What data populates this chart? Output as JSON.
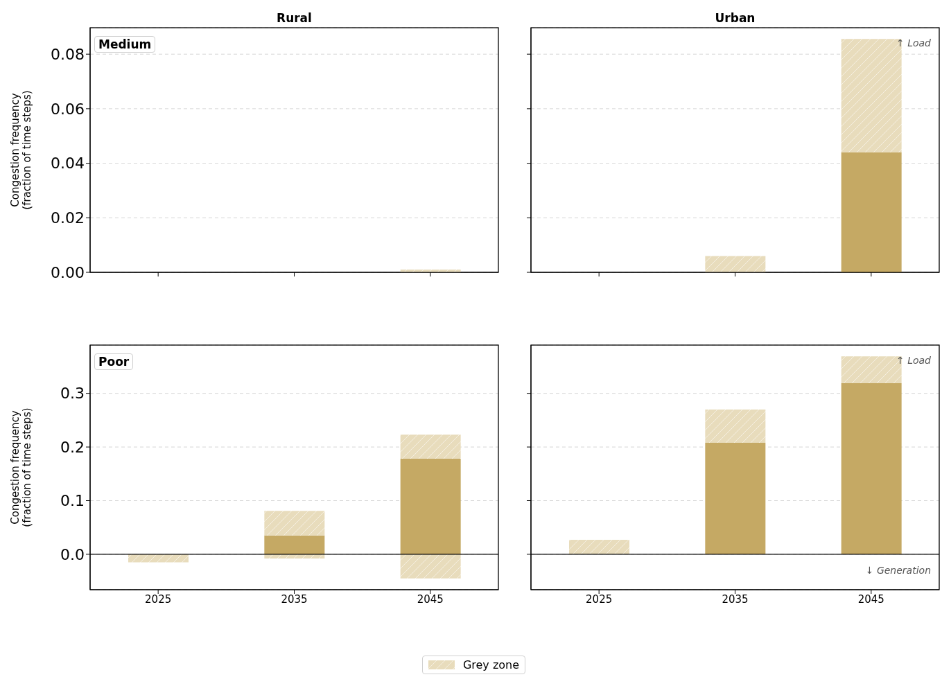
{
  "chart_data": [
    {
      "type": "bar",
      "title": "Rural",
      "ylabel": "Congestion frequency\n(fraction of time steps)",
      "annotations": [
        "Medium"
      ],
      "categories": [
        "2025",
        "2035",
        "2045"
      ],
      "stacked": true,
      "series": [
        {
          "color": "#c5a964",
          "values": [
            0,
            0,
            0
          ]
        },
        {
          "color": "#e8dcbc",
          "values": [
            0,
            0,
            0.001
          ]
        }
      ],
      "ylim": [
        0,
        0.0897
      ],
      "yticks": [
        {
          "value": 0,
          "label": "0.00"
        },
        {
          "value": 0.02,
          "label": "0.02"
        },
        {
          "value": 0.04,
          "label": "0.04"
        },
        {
          "value": 0.06,
          "label": "0.06"
        },
        {
          "value": 0.08,
          "label": "0.08"
        }
      ],
      "grid": "y",
      "tick_labels": "y",
      "legend": false
    },
    {
      "type": "bar",
      "title": "Urban",
      "annotations": [
        "↑ Load"
      ],
      "categories": [
        "2025",
        "2035",
        "2045"
      ],
      "stacked": true,
      "series": [
        {
          "color": "#c5a964",
          "values": [
            0,
            0,
            0.044
          ]
        },
        {
          "color": "#e8dcbc",
          "values": [
            0,
            0.006,
            0.0416
          ]
        }
      ],
      "ylim": [
        0,
        0.0897
      ],
      "yticks": [
        {
          "value": 0,
          "label": null
        },
        {
          "value": 0.02,
          "label": null
        },
        {
          "value": 0.04,
          "label": null
        },
        {
          "value": 0.06,
          "label": null
        },
        {
          "value": 0.08,
          "label": null
        }
      ],
      "grid": "y",
      "tick_labels": false,
      "legend": false
    },
    {
      "type": "bar",
      "ylabel": "Congestion frequency\n(fraction of time steps)",
      "annotations": [
        "Poor"
      ],
      "categories": [
        "2025",
        "2035",
        "2045"
      ],
      "stacked": true,
      "series": [
        {
          "color": "#c5a964",
          "values": [
            0,
            0.035,
            0.178
          ]
        },
        {
          "color": "#e8dcbc",
          "values": [
            0,
            0.046,
            0.045
          ]
        },
        {
          "color": "#e8dcbc",
          "values": [
            -0.015,
            -0.008,
            -0.045
          ]
        }
      ],
      "ylim": [
        -0.066,
        0.39
      ],
      "yticks": [
        {
          "value": 0,
          "label": "0.0"
        },
        0.1,
        0.2,
        0.3
      ],
      "grid": "y",
      "ref_lines": [
        {
          "axis": "y",
          "value": 0,
          "color": "#000000"
        }
      ],
      "legend": false
    },
    {
      "type": "bar",
      "annotations": [
        "↑ Load",
        "↓ Generation"
      ],
      "categories": [
        "2025",
        "2035",
        "2045"
      ],
      "stacked": true,
      "series": [
        {
          "color": "#c5a964",
          "values": [
            0,
            0.208,
            0.319
          ]
        },
        {
          "name": "Grey zone",
          "color": "#e8dcbc",
          "values": [
            0.027,
            0.062,
            0.05
          ]
        }
      ],
      "ylim": [
        -0.066,
        0.39
      ],
      "yticks": [
        {
          "value": 0,
          "label": null
        },
        {
          "value": 0.1,
          "label": null
        },
        {
          "value": 0.2,
          "label": null
        },
        {
          "value": 0.3,
          "label": null
        }
      ],
      "grid": "y",
      "tick_labels": "x",
      "ref_lines": [
        {
          "axis": "y",
          "value": 0,
          "color": "#000000"
        }
      ],
      "legend": "bottom"
    }
  ]
}
